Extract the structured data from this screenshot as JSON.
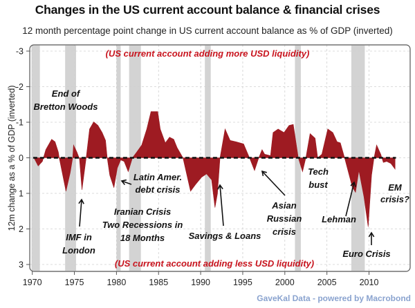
{
  "chart_data": {
    "type": "area",
    "title": "Changes in the US current account balance & financial crises",
    "subtitle": "12 month percentage point change in US current account balance as % of GDP (inverted)",
    "ylabel": "12m change as a % of GDP (inverted)",
    "xlabel": "",
    "ylim": [
      -3,
      3
    ],
    "y_inverted": true,
    "xlim": [
      1970,
      2014
    ],
    "x_ticks": [
      "1970",
      "1975",
      "1980",
      "1985",
      "1990",
      "1995",
      "2000",
      "2005",
      "2010"
    ],
    "y_ticks": [
      "-3",
      "-2",
      "-1",
      "0",
      "1",
      "2",
      "3"
    ],
    "grid": true,
    "fill_color": "#9e1b22",
    "recession_color": "#d3d3d3",
    "recessions": [
      [
        1969.9,
        1970.9
      ],
      [
        1973.9,
        1975.2
      ],
      [
        1980.0,
        1980.5
      ],
      [
        1981.5,
        1982.9
      ],
      [
        1990.5,
        1991.2
      ],
      [
        2001.2,
        2001.9
      ],
      [
        2007.9,
        2009.5
      ]
    ],
    "series": [
      {
        "x": [
          1970.2,
          1970.7,
          1971.2,
          1971.6,
          1972.3,
          1972.7,
          1973.1,
          1973.2,
          1974.0,
          1974.5,
          1974.8,
          1974.9,
          1975.3,
          1975.6,
          1975.9,
          1976.4,
          1976.8,
          1977.3,
          1977.8,
          1978.3,
          1978.7,
          1978.9,
          1979.2,
          1979.7,
          1980.1,
          1980.5,
          1980.9,
          1981.4,
          1981.9,
          1982.4,
          1983.0,
          1983.6,
          1984.1,
          1984.9,
          1985.2,
          1985.8,
          1986.3,
          1986.8,
          1987.2,
          1987.9,
          1988.8,
          1989.4,
          1990.1,
          1990.7,
          1991.3,
          1991.7,
          1992.0,
          1992.3,
          1992.9,
          1993.5,
          1994.2,
          1995.1,
          1995.8,
          1996.4,
          1996.9,
          1997.3,
          1997.6,
          1998.3,
          1998.6,
          1999.2,
          1999.9,
          2000.5,
          2001.0,
          2001.6,
          2002.1,
          2002.5,
          2003.0,
          2003.6,
          2003.9,
          2004.4,
          2005.1,
          2005.7,
          2006.2,
          2006.6,
          2007.1,
          2008.0,
          2008.4,
          2008.8,
          2009.4,
          2009.9,
          2010.3,
          2010.6,
          2010.9,
          2011.4,
          2011.7,
          2012.1,
          2012.6,
          2013.1
        ],
        "values": [
          0,
          0.23,
          0.1,
          -0.23,
          -0.52,
          -0.45,
          -0.16,
          0,
          0.94,
          0.42,
          0,
          -0.36,
          -0.16,
          0.03,
          0.9,
          0,
          -0.81,
          -1.01,
          -0.91,
          -0.71,
          -0.49,
          0,
          0.49,
          0.84,
          0.29,
          0.06,
          0.1,
          0.39,
          0,
          -0.16,
          -0.36,
          -0.81,
          -1.3,
          -1.3,
          -0.81,
          -0.42,
          -0.58,
          -0.52,
          -0.29,
          0,
          0.94,
          0.75,
          0.55,
          0.45,
          0.62,
          1.4,
          1.01,
          0,
          -0.81,
          -0.49,
          -0.45,
          -0.39,
          0,
          0.36,
          0,
          -0.23,
          -0.1,
          -0.06,
          -0.71,
          -0.81,
          -0.71,
          -0.91,
          -0.94,
          0,
          0.39,
          0,
          -0.68,
          -0.55,
          0,
          -0.1,
          -0.81,
          -0.71,
          -0.45,
          -0.42,
          0,
          0.81,
          0.97,
          0.36,
          1.1,
          1.94,
          0.49,
          0,
          -0.36,
          -0.1,
          0.13,
          0.1,
          0.16,
          0.32
        ]
      }
    ],
    "notes": {
      "top": "(US current account adding more USD liquidity)",
      "bottom": "(US current account adding less USD liquidity)"
    },
    "annotations": [
      {
        "lines": [
          "End of",
          "Bretton Woods"
        ]
      },
      {
        "lines": [
          "Latin Amer.",
          "debt crisis"
        ]
      },
      {
        "lines": [
          "Iranian Crisis",
          "Two Recessions in",
          "18 Months"
        ]
      },
      {
        "lines": [
          "IMF in",
          "London"
        ]
      },
      {
        "lines": [
          "Savings & Loans"
        ]
      },
      {
        "lines": [
          "Asian",
          "Russian",
          "crisis"
        ]
      },
      {
        "lines": [
          "Tech",
          "bust"
        ]
      },
      {
        "lines": [
          "Lehman"
        ]
      },
      {
        "lines": [
          "Euro Crisis"
        ]
      },
      {
        "lines": [
          "EM",
          "crisis?"
        ]
      }
    ]
  },
  "source": "GaveKal Data - powered by Macrobond"
}
